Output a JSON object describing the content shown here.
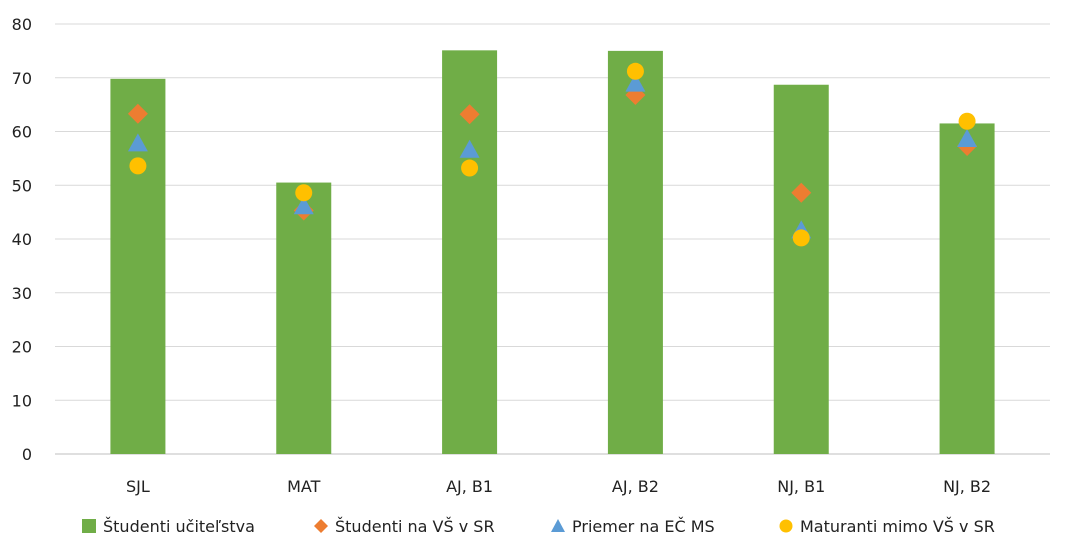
{
  "chart_data": {
    "type": "bar",
    "categories": [
      "SJL",
      "MAT",
      "AJ, B1",
      "AJ, B2",
      "NJ, B1",
      "NJ, B2"
    ],
    "ylim": [
      0,
      80
    ],
    "yticks": [
      0,
      10,
      20,
      30,
      40,
      50,
      60,
      70,
      80
    ],
    "grid": true,
    "legend_position": "bottom",
    "series": [
      {
        "name": "Študenti učiteľstva",
        "kind": "bar",
        "marker": "square",
        "color": "#70ad47",
        "values": [
          69.8,
          50.5,
          75.1,
          75.0,
          68.7,
          61.5
        ]
      },
      {
        "name": "Študenti na VŠ v SR",
        "kind": "marker",
        "marker": "diamond",
        "color": "#ed7d31",
        "values": [
          63.3,
          45.3,
          63.2,
          66.8,
          48.6,
          57.3
        ]
      },
      {
        "name": "Priemer na EČ MS",
        "kind": "marker",
        "marker": "triangle",
        "color": "#5b9bd5",
        "values": [
          57.8,
          46.1,
          56.6,
          68.9,
          41.6,
          58.6
        ]
      },
      {
        "name": "Maturanti mimo VŠ v SR",
        "kind": "marker",
        "marker": "circle",
        "color": "#ffc000",
        "values": [
          53.6,
          48.6,
          53.2,
          71.2,
          40.2,
          61.9
        ]
      }
    ]
  }
}
